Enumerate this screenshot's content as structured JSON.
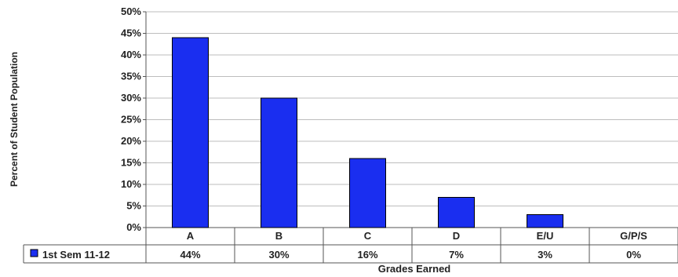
{
  "chart_data": {
    "type": "bar",
    "categories": [
      "A",
      "B",
      "C",
      "D",
      "E/U",
      "G/P/S"
    ],
    "series": [
      {
        "name": "1st Sem 11-12",
        "values": [
          44,
          30,
          16,
          7,
          3,
          0
        ],
        "labels": [
          "44%",
          "30%",
          "16%",
          "7%",
          "3%",
          "0%"
        ]
      }
    ],
    "ylim": [
      0,
      50
    ],
    "yticks": [
      "0%",
      "5%",
      "10%",
      "15%",
      "20%",
      "25%",
      "30%",
      "35%",
      "40%",
      "45%",
      "50%"
    ],
    "ylabel": "Percent of Student Population",
    "xlabel": "Grades Earned",
    "grid": true,
    "legend": "data-table-left",
    "colors": {
      "bar": "#1a2ef0",
      "bar_edge": "#000000",
      "grid": "#bdbdbd"
    }
  }
}
